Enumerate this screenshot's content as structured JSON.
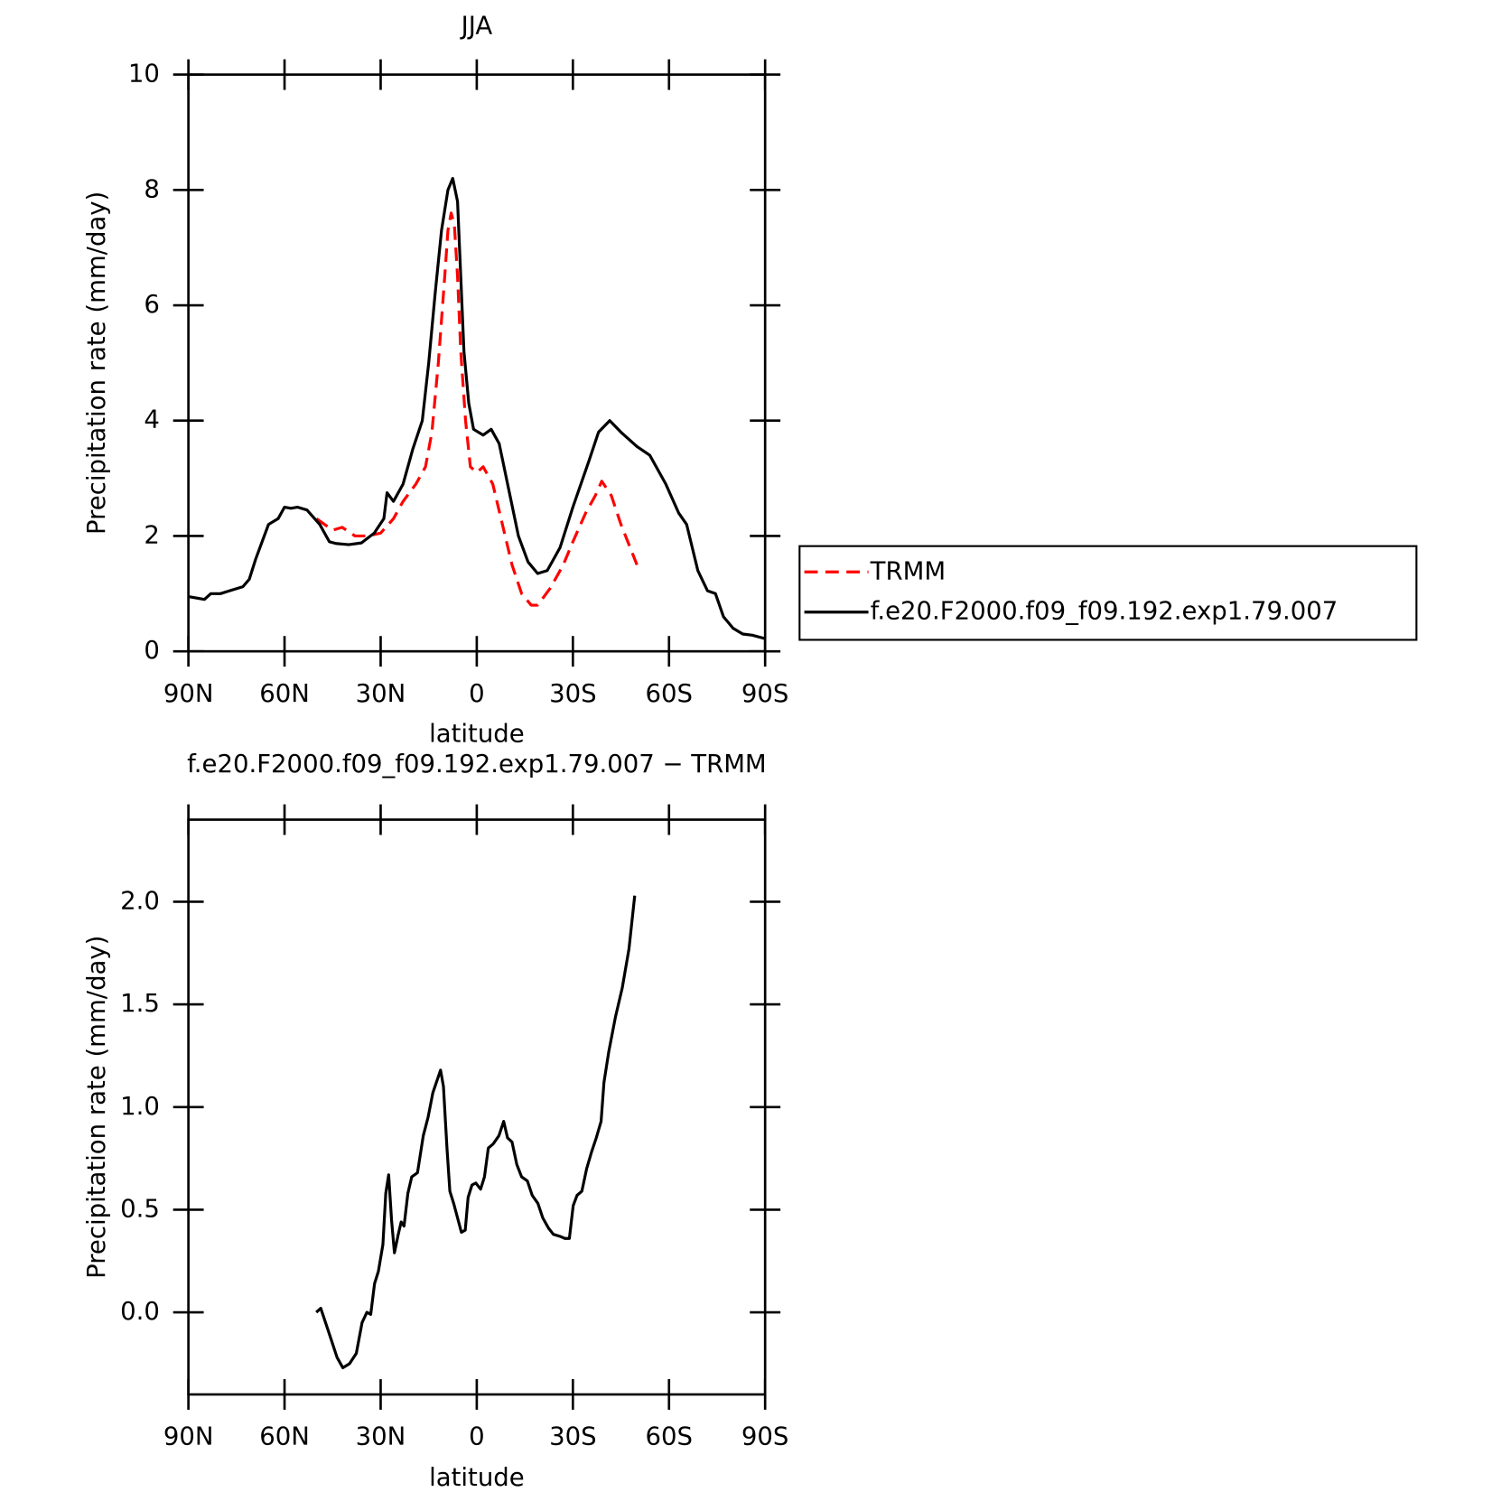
{
  "chart_data": [
    {
      "type": "line",
      "title": "JJA",
      "x_label": "latitude",
      "y_label": "Precipitation rate (mm/day)",
      "xlim": [
        90,
        -90
      ],
      "xticks": [
        {
          "value": 90,
          "label": "90N"
        },
        {
          "value": 60,
          "label": "60N"
        },
        {
          "value": 30,
          "label": "30N"
        },
        0,
        {
          "value": -30,
          "label": "30S"
        },
        {
          "value": -60,
          "label": "60S"
        },
        {
          "value": -90,
          "label": "90S"
        }
      ],
      "ylim": [
        0,
        10
      ],
      "yticks": [
        0,
        2,
        4,
        6,
        8,
        10
      ],
      "legend": "right",
      "series": [
        {
          "name": "TRMM",
          "color": "#ff0000",
          "dash": true,
          "x": [
            50,
            45,
            42,
            38,
            34,
            30,
            26,
            23,
            19,
            16,
            14,
            12,
            10,
            9,
            8,
            7,
            6,
            5,
            3.5,
            2,
            0,
            -2,
            -5,
            -8,
            -11,
            -14,
            -17,
            -19,
            -23,
            -27,
            -30,
            -34,
            -37,
            -39,
            -42,
            -45,
            -50
          ],
          "values": [
            2.3,
            2.1,
            2.15,
            2.0,
            2.0,
            2.05,
            2.3,
            2.6,
            2.9,
            3.2,
            3.8,
            5.0,
            6.5,
            7.3,
            7.6,
            7.4,
            6.5,
            5.2,
            4.0,
            3.2,
            3.1,
            3.2,
            2.9,
            2.2,
            1.5,
            1.0,
            0.8,
            0.8,
            1.1,
            1.5,
            1.9,
            2.4,
            2.7,
            2.95,
            2.7,
            2.2,
            1.5
          ]
        },
        {
          "name": "f.e20.F2000.f09_f09.192.exp1.79.007",
          "color": "#000000",
          "dash": false,
          "x": [
            90,
            87,
            85,
            83,
            80,
            76,
            73,
            71,
            69,
            67,
            65,
            62,
            60,
            58,
            56,
            53,
            49,
            46,
            44,
            40,
            36,
            32,
            29,
            28,
            26,
            23,
            20,
            17,
            15,
            13,
            11,
            9,
            7.5,
            6,
            5,
            4,
            2.5,
            1,
            -2,
            -4.5,
            -7,
            -10,
            -13,
            -16,
            -19,
            -22,
            -26,
            -30,
            -35,
            -38,
            -41.5,
            -45,
            -50,
            -54,
            -59,
            -63,
            -65.5,
            -69,
            -72,
            -74.5,
            -77,
            -80,
            -83,
            -86,
            -90
          ],
          "values": [
            0.95,
            0.92,
            0.9,
            1.0,
            1.0,
            1.07,
            1.12,
            1.25,
            1.6,
            1.9,
            2.2,
            2.3,
            2.5,
            2.48,
            2.5,
            2.45,
            2.2,
            1.9,
            1.87,
            1.85,
            1.88,
            2.05,
            2.3,
            2.75,
            2.6,
            2.9,
            3.5,
            4.0,
            5.0,
            6.2,
            7.3,
            8.0,
            8.2,
            7.8,
            6.5,
            5.2,
            4.3,
            3.85,
            3.75,
            3.85,
            3.6,
            2.8,
            2.0,
            1.55,
            1.35,
            1.4,
            1.8,
            2.5,
            3.3,
            3.8,
            4.0,
            3.8,
            3.55,
            3.4,
            2.9,
            2.4,
            2.2,
            1.4,
            1.05,
            1.0,
            0.6,
            0.4,
            0.3,
            0.28,
            0.22
          ]
        }
      ]
    },
    {
      "type": "line",
      "title": "f.e20.F2000.f09_f09.192.exp1.79.007 − TRMM",
      "x_label": "latitude",
      "y_label": "Precipitation rate (mm/day)",
      "xlim": [
        90,
        -90
      ],
      "xticks": [
        {
          "value": 90,
          "label": "90N"
        },
        {
          "value": 60,
          "label": "60N"
        },
        {
          "value": 30,
          "label": "30N"
        },
        0,
        {
          "value": -30,
          "label": "30S"
        },
        {
          "value": -60,
          "label": "60S"
        },
        {
          "value": -90,
          "label": "90S"
        }
      ],
      "ylim": [
        -0.4,
        2.4
      ],
      "yticks": [
        {
          "value": 0,
          "label": "0.0"
        },
        0.5,
        {
          "value": 1,
          "label": "1.0"
        },
        1.5,
        {
          "value": 2,
          "label": "2.0"
        }
      ],
      "color": "#000000",
      "x": [
        50.1,
        48.7,
        45.7,
        43.6,
        41.8,
        39.7,
        37.6,
        35.8,
        34.3,
        33.1,
        31.9,
        30.7,
        29.3,
        28.4,
        27.5,
        26.6,
        25.7,
        24.5,
        23.6,
        22.7,
        21.5,
        20.3,
        18.5,
        16.7,
        15.2,
        13.7,
        11.3,
        10.4,
        9.3,
        8.4,
        7.2,
        6,
        4.8,
        3.6,
        2.7,
        1.5,
        0.3,
        -1.2,
        -2.4,
        -3.6,
        -5.1,
        -6.9,
        -8.4,
        -9.6,
        -11,
        -12.5,
        -14,
        -15.8,
        -17.3,
        -19.1,
        -20.6,
        -22.4,
        -23.9,
        -26,
        -27.5,
        -28.9,
        -30.1,
        -31.3,
        -32.8,
        -34.3,
        -35.8,
        -37.3,
        -38.8,
        -39.7,
        -41.2,
        -43.3,
        -45.4,
        -47.5,
        -49.3
      ],
      "values": [
        0.0,
        0.02,
        -0.12,
        -0.22,
        -0.27,
        -0.25,
        -0.2,
        -0.05,
        0.0,
        -0.01,
        0.14,
        0.2,
        0.33,
        0.58,
        0.67,
        0.45,
        0.29,
        0.38,
        0.44,
        0.42,
        0.58,
        0.66,
        0.68,
        0.86,
        0.95,
        1.07,
        1.18,
        1.1,
        0.8,
        0.59,
        0.53,
        0.46,
        0.39,
        0.4,
        0.56,
        0.62,
        0.63,
        0.6,
        0.66,
        0.8,
        0.82,
        0.86,
        0.93,
        0.85,
        0.83,
        0.72,
        0.66,
        0.64,
        0.57,
        0.53,
        0.46,
        0.41,
        0.38,
        0.37,
        0.36,
        0.36,
        0.52,
        0.57,
        0.59,
        0.7,
        0.78,
        0.85,
        0.93,
        1.12,
        1.27,
        1.44,
        1.58,
        1.77,
        2.03
      ]
    }
  ]
}
